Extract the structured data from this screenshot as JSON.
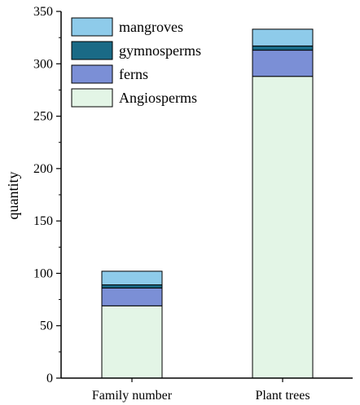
{
  "chart_data": {
    "type": "bar",
    "stacked": true,
    "title": "",
    "xlabel": "",
    "ylabel": "quantity",
    "ylim": [
      0,
      350
    ],
    "yticks": [
      0,
      50,
      100,
      150,
      200,
      250,
      300,
      350
    ],
    "categories": [
      "Family number",
      "Plant trees"
    ],
    "series": [
      {
        "name": "Angiosperms",
        "color": "#e3f5e6",
        "values": [
          69,
          288
        ]
      },
      {
        "name": "ferns",
        "color": "#7b8fd6",
        "values": [
          17,
          25
        ]
      },
      {
        "name": "gymnosperms",
        "color": "#1a6a86",
        "values": [
          3,
          4
        ]
      },
      {
        "name": "mangroves",
        "color": "#8ecbea",
        "values": [
          13,
          16
        ]
      }
    ],
    "legend_order": [
      "mangroves",
      "gymnosperms",
      "ferns",
      "Angiosperms"
    ],
    "legend_position": "top-left",
    "grid": false
  }
}
